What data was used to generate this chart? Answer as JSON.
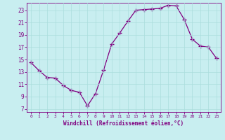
{
  "x": [
    0,
    1,
    2,
    3,
    4,
    5,
    6,
    7,
    8,
    9,
    10,
    11,
    12,
    13,
    14,
    15,
    16,
    17,
    18,
    19,
    20,
    21,
    22,
    23
  ],
  "y": [
    14.5,
    13.2,
    12.1,
    12.0,
    10.8,
    10.0,
    9.7,
    7.5,
    9.5,
    13.3,
    17.5,
    19.3,
    21.2,
    23.0,
    23.1,
    23.2,
    23.3,
    23.8,
    23.7,
    21.5,
    18.3,
    17.2,
    17.0,
    15.2
  ],
  "line_color": "#800080",
  "marker": "+",
  "marker_size": 4,
  "bg_color": "#c8eef0",
  "grid_color": "#aadddd",
  "xlabel": "Windchill (Refroidissement éolien,°C)",
  "xlabel_color": "#800080",
  "tick_color": "#800080",
  "yticks": [
    7,
    9,
    11,
    13,
    15,
    17,
    19,
    21,
    23
  ],
  "xticks": [
    0,
    1,
    2,
    3,
    4,
    5,
    6,
    7,
    8,
    9,
    10,
    11,
    12,
    13,
    14,
    15,
    16,
    17,
    18,
    19,
    20,
    21,
    22,
    23
  ],
  "ylim": [
    6.5,
    24.2
  ],
  "xlim": [
    -0.5,
    23.5
  ]
}
